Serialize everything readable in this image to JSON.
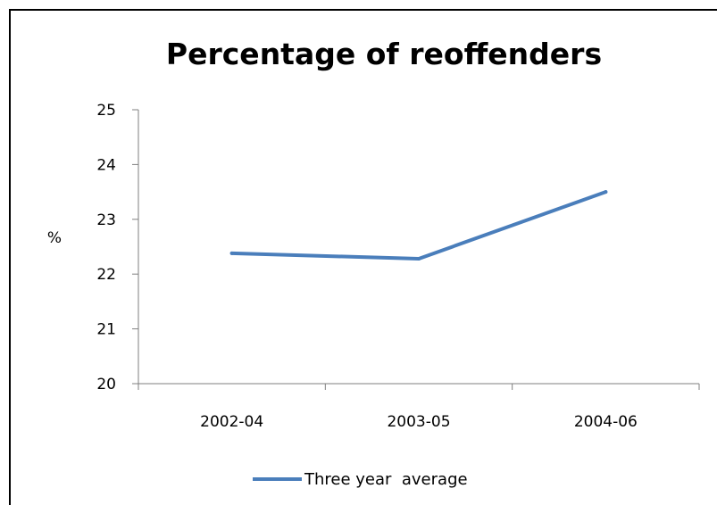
{
  "chart_data": {
    "type": "line",
    "title": "Percentage of reoffenders",
    "xlabel": "",
    "ylabel": "%",
    "categories": [
      "2002-04",
      "2003-05",
      "2004-06"
    ],
    "series": [
      {
        "name": "Three year  average",
        "values": [
          22.38,
          22.28,
          23.5
        ],
        "color": "#4a7ebb"
      }
    ],
    "ylim": [
      20,
      25
    ],
    "yticks": [
      20,
      21,
      22,
      23,
      24,
      25
    ],
    "grid": false,
    "legend": "bottom"
  }
}
